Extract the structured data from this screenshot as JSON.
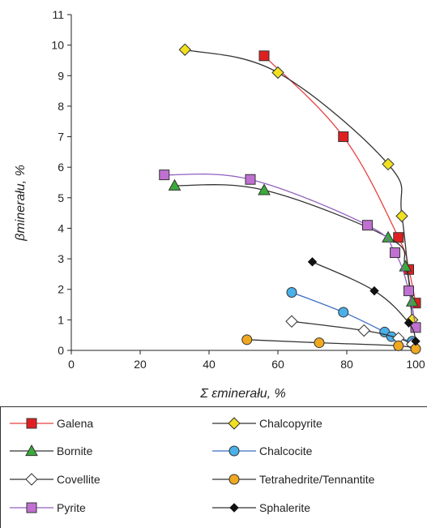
{
  "chart_data": {
    "type": "scatter",
    "xlabel": "Σ εminerału, %",
    "ylabel": "βminerału, %",
    "xlim": [
      0,
      100
    ],
    "ylim": [
      0,
      11
    ],
    "x_ticks": [
      "0",
      "20",
      "40",
      "60",
      "80",
      "100"
    ],
    "y_ticks": [
      "0",
      "1",
      "2",
      "3",
      "4",
      "5",
      "6",
      "7",
      "8",
      "9",
      "10",
      "11"
    ],
    "grid": false,
    "legend_position": "bottom",
    "series": [
      {
        "name": "Galena",
        "color": "#e02020",
        "line": "#e84040",
        "marker": "square",
        "x": [
          56,
          79,
          95,
          98,
          100
        ],
        "y": [
          9.65,
          7.0,
          3.7,
          2.65,
          1.55
        ]
      },
      {
        "name": "Chalcopyrite",
        "color": "#f0e020",
        "line": "#333333",
        "marker": "diamond",
        "x": [
          33,
          60,
          92,
          96,
          99
        ],
        "y": [
          9.85,
          9.1,
          6.1,
          4.4,
          1.0
        ]
      },
      {
        "name": "Bornite",
        "color": "#3aaa3a",
        "line": "#333333",
        "marker": "triangle",
        "x": [
          30,
          56,
          92,
          97,
          99
        ],
        "y": [
          5.4,
          5.25,
          3.7,
          2.75,
          1.6
        ]
      },
      {
        "name": "Chalcocite",
        "color": "#4ab0e8",
        "line": "#3a6ec0",
        "marker": "circle",
        "x": [
          64,
          79,
          91,
          93,
          99
        ],
        "y": [
          1.9,
          1.25,
          0.6,
          0.45,
          0.3
        ]
      },
      {
        "name": "Covellite",
        "color": "#ffffff",
        "line": "#333333",
        "marker": "diamond",
        "x": [
          64,
          85,
          95,
          99
        ],
        "y": [
          0.95,
          0.65,
          0.4,
          0.2
        ]
      },
      {
        "name": "Tetrahedrite/Tennantite",
        "color": "#f0a820",
        "line": "#333333",
        "marker": "circle",
        "x": [
          51,
          72,
          95,
          100
        ],
        "y": [
          0.35,
          0.25,
          0.15,
          0.05
        ]
      },
      {
        "name": "Pyrite",
        "color": "#c070d0",
        "line": "#9060c0",
        "marker": "square",
        "x": [
          27,
          52,
          86,
          94,
          98,
          100
        ],
        "y": [
          5.75,
          5.6,
          4.1,
          3.2,
          1.95,
          0.75
        ]
      },
      {
        "name": "Sphalerite",
        "color": "#111111",
        "line": "#333333",
        "marker": "diamond-small",
        "x": [
          70,
          88,
          98,
          100
        ],
        "y": [
          2.9,
          1.95,
          0.9,
          0.3
        ]
      }
    ]
  }
}
